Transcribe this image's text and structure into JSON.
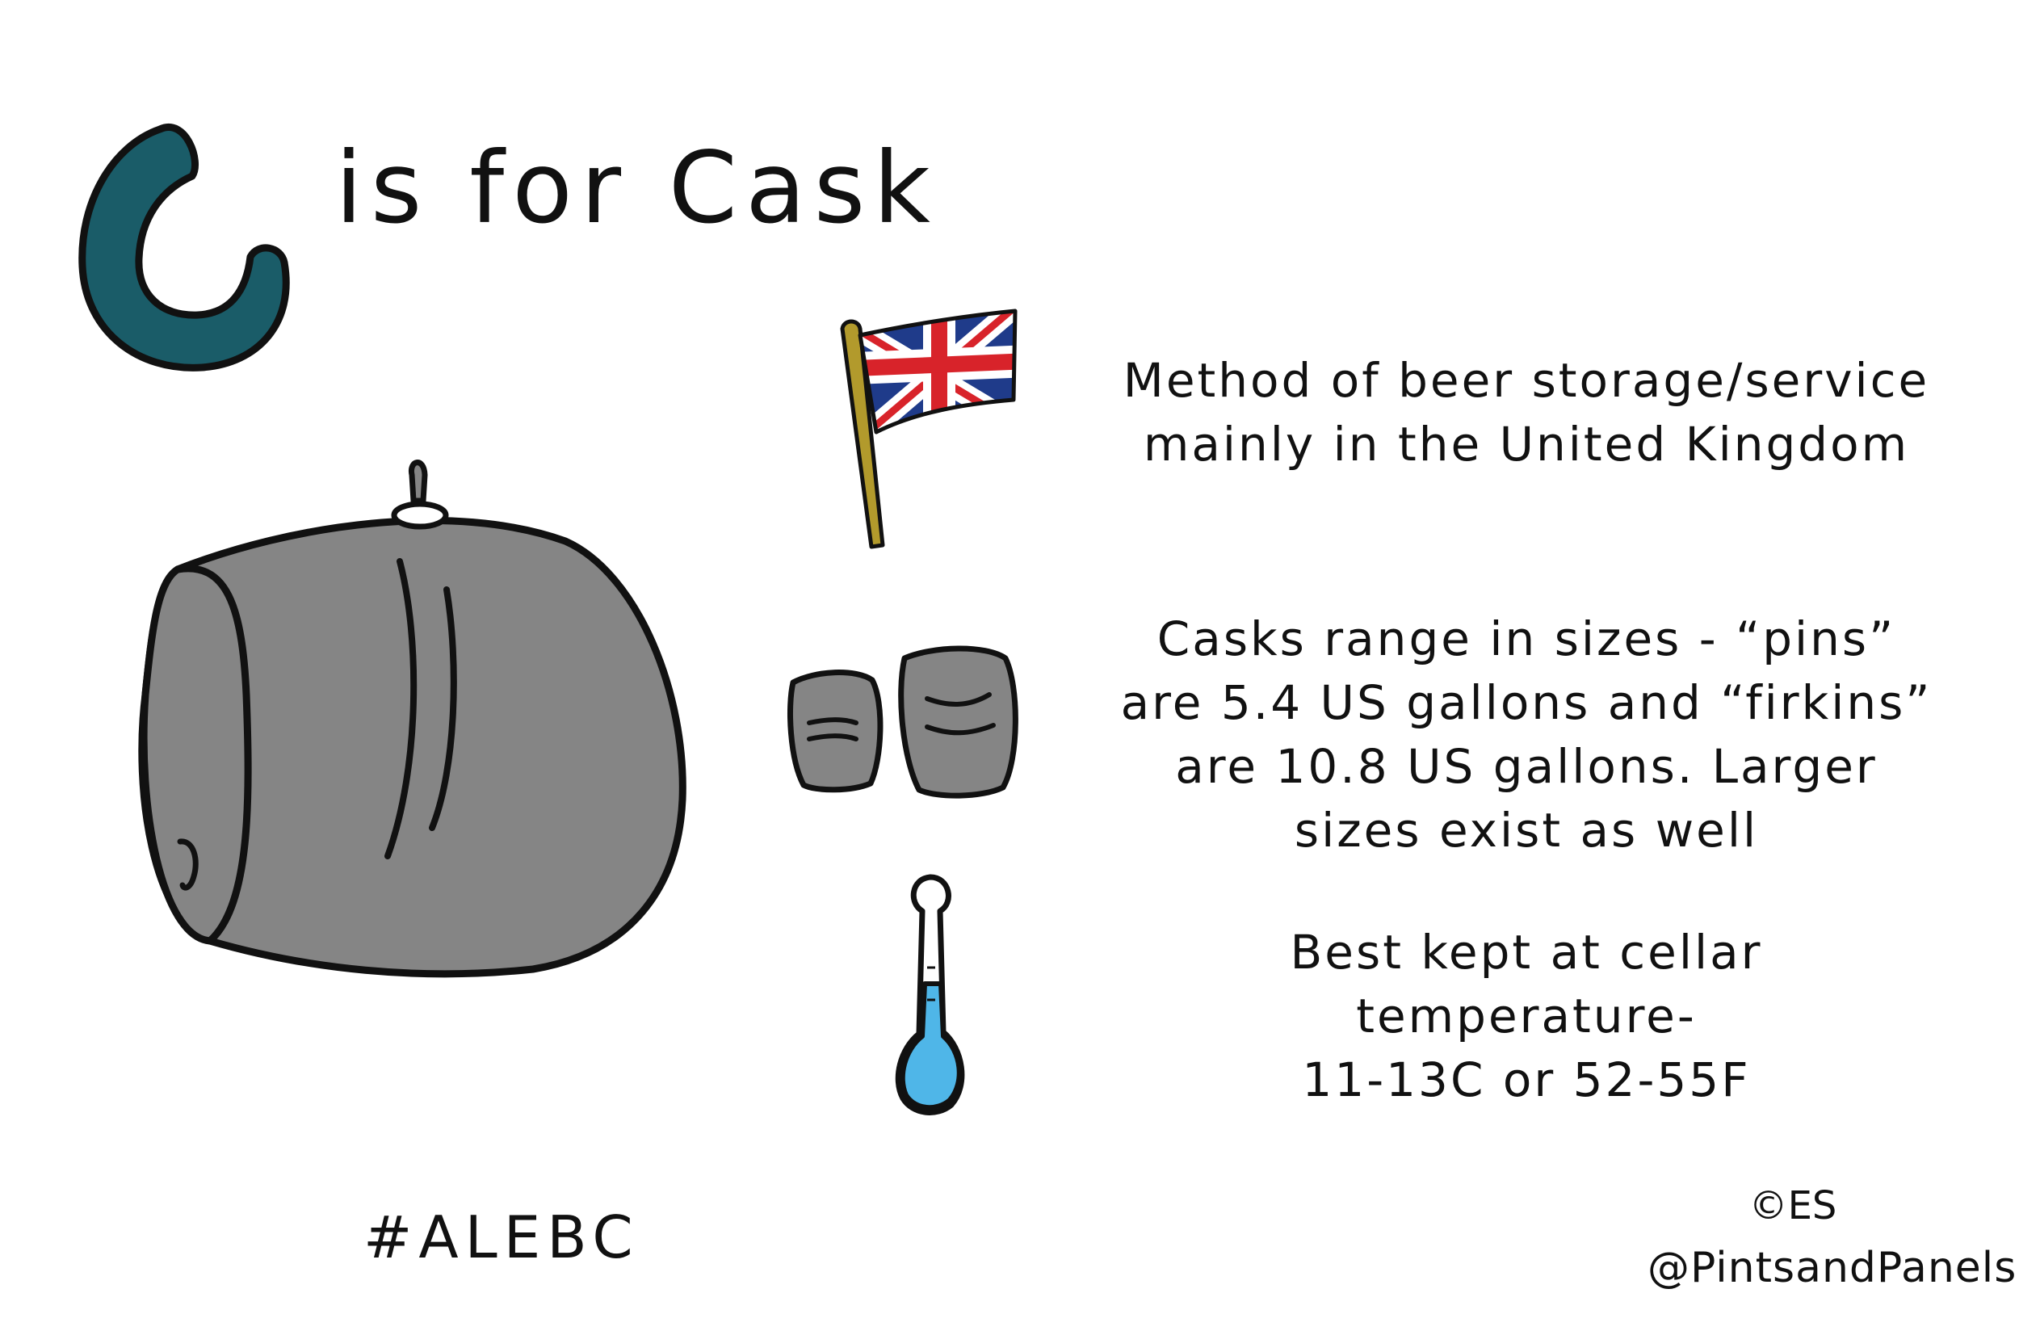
{
  "title": {
    "letter": "C",
    "rest": "is for Cask"
  },
  "facts": {
    "storage": "Method of beer storage/service\nmainly in the United Kingdom",
    "sizes": "Casks range in sizes - “pins”\nare 5.4 US gallons and “firkins”\nare 10.8 US gallons. Larger\nsizes exist as well",
    "temperature": "Best kept at cellar\ntemperature-\n11-13C or 52-55F"
  },
  "footer": {
    "hashtag": "#ALEBC",
    "copyright": "©ES",
    "handle": "@PintsandPanels"
  },
  "colors": {
    "letter_fill": "#1a5c68",
    "cask_fill": "#858585",
    "pole_fill": "#b29a2c",
    "flag_blue": "#1f3b8a",
    "flag_red": "#d8232a",
    "thermometer_liquid": "#4fb6e8",
    "outline": "#111111"
  },
  "icons": {
    "title_letter": "letter-c-drawing",
    "cask": "cask-barrel-icon",
    "flag": "union-jack-flag-icon",
    "small_casks": "small-casks-icon",
    "thermometer": "thermometer-icon"
  }
}
